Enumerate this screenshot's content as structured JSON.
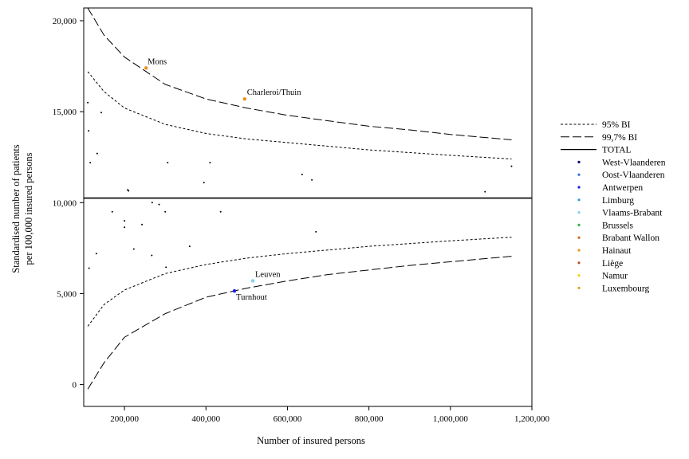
{
  "chart_data": {
    "type": "scatter",
    "title": "",
    "xlabel": "Number of insured persons",
    "ylabel": [
      "Standardised number of patients",
      "per 100,000 insured persons"
    ],
    "xlim": [
      100000,
      1200000
    ],
    "ylim": [
      -1200,
      20700
    ],
    "x_ticks": [
      200000,
      400000,
      600000,
      800000,
      1000000,
      1200000
    ],
    "x_tick_labels": [
      "200,000",
      "400,000",
      "600,000",
      "800,000",
      "1,000,000",
      "1,200,000"
    ],
    "y_ticks": [
      0,
      5000,
      10000,
      15000,
      20000
    ],
    "y_tick_labels": [
      "0",
      "5,000",
      "10,000",
      "15,000",
      "20,000"
    ],
    "grid": false,
    "legend_placement": "right",
    "total_line": 10250,
    "ci_95_upper": [
      [
        110000,
        17200
      ],
      [
        150000,
        16100
      ],
      [
        200000,
        15200
      ],
      [
        300000,
        14300
      ],
      [
        400000,
        13800
      ],
      [
        500000,
        13500
      ],
      [
        600000,
        13300
      ],
      [
        700000,
        13100
      ],
      [
        800000,
        12900
      ],
      [
        900000,
        12750
      ],
      [
        1000000,
        12600
      ],
      [
        1150000,
        12400
      ]
    ],
    "ci_95_lower": [
      [
        110000,
        3200
      ],
      [
        150000,
        4400
      ],
      [
        200000,
        5200
      ],
      [
        300000,
        6100
      ],
      [
        400000,
        6600
      ],
      [
        500000,
        6950
      ],
      [
        600000,
        7200
      ],
      [
        700000,
        7400
      ],
      [
        800000,
        7600
      ],
      [
        900000,
        7750
      ],
      [
        1000000,
        7900
      ],
      [
        1150000,
        8100
      ]
    ],
    "ci_997_upper": [
      [
        110000,
        20700
      ],
      [
        150000,
        19200
      ],
      [
        200000,
        18000
      ],
      [
        300000,
        16500
      ],
      [
        400000,
        15700
      ],
      [
        500000,
        15200
      ],
      [
        600000,
        14800
      ],
      [
        700000,
        14500
      ],
      [
        800000,
        14200
      ],
      [
        900000,
        14000
      ],
      [
        1000000,
        13750
      ],
      [
        1150000,
        13450
      ]
    ],
    "ci_997_lower": [
      [
        110000,
        -250
      ],
      [
        150000,
        1200
      ],
      [
        200000,
        2600
      ],
      [
        300000,
        3900
      ],
      [
        400000,
        4800
      ],
      [
        500000,
        5300
      ],
      [
        600000,
        5700
      ],
      [
        700000,
        6050
      ],
      [
        800000,
        6300
      ],
      [
        900000,
        6550
      ],
      [
        1000000,
        6750
      ],
      [
        1150000,
        7050
      ]
    ],
    "series": [
      {
        "name": "95% BI",
        "style": "short-dash"
      },
      {
        "name": "99,7% BI",
        "style": "long-dash"
      },
      {
        "name": "TOTAL",
        "style": "solid"
      },
      {
        "name": "West-Vlaanderen",
        "color": "#00007a"
      },
      {
        "name": "Oost-Vlaanderen",
        "color": "#3c6ed8"
      },
      {
        "name": "Antwerpen",
        "color": "#1c1ce6"
      },
      {
        "name": "Limburg",
        "color": "#2e9ae0"
      },
      {
        "name": "Vlaams-Brabant",
        "color": "#7fd2ee"
      },
      {
        "name": "Brussels",
        "color": "#33b04a"
      },
      {
        "name": "Brabant Wallon",
        "color": "#d8631e"
      },
      {
        "name": "Hainaut",
        "color": "#f0901a"
      },
      {
        "name": "Liège",
        "color": "#b55428"
      },
      {
        "name": "Namur",
        "color": "#f4d210"
      },
      {
        "name": "Luxembourg",
        "color": "#e8a020"
      }
    ],
    "points": [
      {
        "x": 253000,
        "y": 17400,
        "color": "#f0901a",
        "label": "Mons",
        "size": 2.2
      },
      {
        "x": 495000,
        "y": 15700,
        "color": "#f0901a",
        "label": "Charleroi/Thuin",
        "size": 2.2
      },
      {
        "x": 515000,
        "y": 5700,
        "color": "#7fd2ee",
        "label": "Leuven",
        "size": 2.2
      },
      {
        "x": 470000,
        "y": 5150,
        "color": "#1c1ce6",
        "label": "Turnhout",
        "size": 2.2
      },
      {
        "x": 110000,
        "y": 15500,
        "color": "#000000"
      },
      {
        "x": 143000,
        "y": 14950,
        "color": "#000000"
      },
      {
        "x": 112000,
        "y": 13950,
        "color": "#000000"
      },
      {
        "x": 133000,
        "y": 12700,
        "color": "#000000"
      },
      {
        "x": 116000,
        "y": 12200,
        "color": "#000000"
      },
      {
        "x": 208000,
        "y": 10700,
        "color": "#000000"
      },
      {
        "x": 210000,
        "y": 10650,
        "color": "#000000"
      },
      {
        "x": 306000,
        "y": 12200,
        "color": "#000000"
      },
      {
        "x": 395000,
        "y": 11100,
        "color": "#000000"
      },
      {
        "x": 410000,
        "y": 12200,
        "color": "#000000"
      },
      {
        "x": 636000,
        "y": 11550,
        "color": "#000000"
      },
      {
        "x": 660000,
        "y": 11250,
        "color": "#000000"
      },
      {
        "x": 1085000,
        "y": 10600,
        "color": "#000000"
      },
      {
        "x": 1150000,
        "y": 12000,
        "color": "#000000"
      },
      {
        "x": 170000,
        "y": 9500,
        "color": "#000000"
      },
      {
        "x": 200000,
        "y": 9000,
        "color": "#000000"
      },
      {
        "x": 200000,
        "y": 8650,
        "color": "#000000"
      },
      {
        "x": 243000,
        "y": 8800,
        "color": "#000000"
      },
      {
        "x": 268000,
        "y": 10000,
        "color": "#000000"
      },
      {
        "x": 285000,
        "y": 9900,
        "color": "#000000"
      },
      {
        "x": 300000,
        "y": 9500,
        "color": "#000000"
      },
      {
        "x": 436000,
        "y": 9500,
        "color": "#000000"
      },
      {
        "x": 670000,
        "y": 8400,
        "color": "#000000"
      },
      {
        "x": 223000,
        "y": 7450,
        "color": "#000000"
      },
      {
        "x": 360000,
        "y": 7600,
        "color": "#000000"
      },
      {
        "x": 131000,
        "y": 7200,
        "color": "#000000"
      },
      {
        "x": 267000,
        "y": 7100,
        "color": "#000000"
      },
      {
        "x": 113000,
        "y": 6400,
        "color": "#000000"
      },
      {
        "x": 302000,
        "y": 6450,
        "color": "#000000"
      }
    ]
  }
}
